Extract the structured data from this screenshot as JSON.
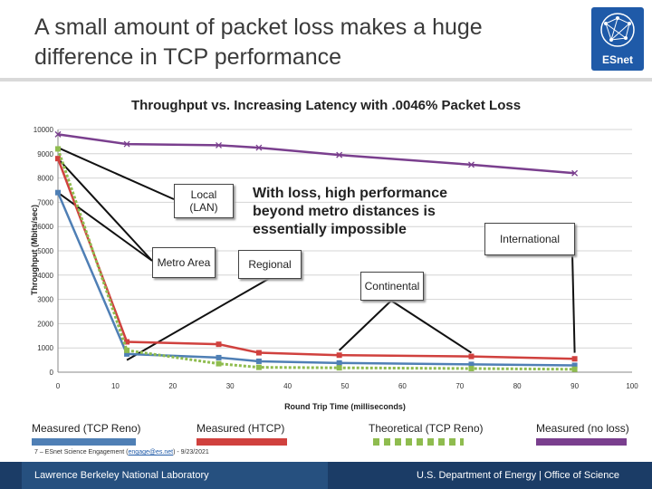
{
  "slide": {
    "title": "A small amount of packet loss makes a huge difference in TCP performance"
  },
  "logo": {
    "text": "ESnet"
  },
  "annotations": {
    "local_lan": "Local\n(LAN)",
    "metro_area": "Metro Area",
    "regional": "Regional",
    "continental": "Continental",
    "international": "International",
    "main_note": "With loss, high performance beyond metro distances is essentially impossible"
  },
  "legend": [
    {
      "label": "Measured (TCP Reno)",
      "color": "#4f7fb5",
      "style": "solid"
    },
    {
      "label": "Measured (HTCP)",
      "color": "#d0413e",
      "style": "solid"
    },
    {
      "label": "Theoretical (TCP Reno)",
      "color": "#8fbc4f",
      "style": "dashed"
    },
    {
      "label": "Measured (no loss)",
      "color": "#7a3f8e",
      "style": "solid"
    }
  ],
  "footer": {
    "small_prefix": "7 – ESnet Science Engagement (",
    "small_email": "engage@es.net",
    "small_suffix": ") - 9/23/2021",
    "left": "Lawrence Berkeley National Laboratory",
    "right": "U.S. Department of Energy  |  Office of Science"
  },
  "chart_data": {
    "type": "line",
    "title": "Throughput vs. Increasing Latency with .0046% Packet Loss",
    "xlabel": "Round Trip Time (milliseconds)",
    "ylabel": "Throughput (Mbits/sec)",
    "xlim": [
      0,
      100
    ],
    "ylim": [
      0,
      10000
    ],
    "xticks": [
      0,
      10,
      20,
      30,
      40,
      50,
      60,
      70,
      80,
      90,
      100
    ],
    "yticks": [
      0,
      1000,
      2000,
      3000,
      4000,
      5000,
      6000,
      7000,
      8000,
      9000,
      10000
    ],
    "grid": "horizontal",
    "series": [
      {
        "name": "Measured (no loss)",
        "color": "#7a3f8e",
        "style": "solid",
        "x": [
          0,
          12,
          28,
          35,
          49,
          72,
          90
        ],
        "y": [
          9800,
          9400,
          9350,
          9250,
          8950,
          8550,
          8200
        ]
      },
      {
        "name": "Measured (HTCP)",
        "color": "#d0413e",
        "style": "solid",
        "x": [
          0,
          12,
          28,
          35,
          49,
          72,
          90
        ],
        "y": [
          8800,
          1250,
          1150,
          800,
          700,
          650,
          550
        ]
      },
      {
        "name": "Measured (TCP Reno)",
        "color": "#4f7fb5",
        "style": "solid",
        "x": [
          0,
          12,
          28,
          35,
          49,
          72,
          90
        ],
        "y": [
          7400,
          750,
          600,
          450,
          380,
          320,
          280
        ]
      },
      {
        "name": "Theoretical (TCP Reno)",
        "color": "#8fbc4f",
        "style": "dashed",
        "x": [
          0,
          12,
          28,
          35,
          49,
          72,
          90
        ],
        "y": [
          9200,
          900,
          350,
          200,
          180,
          150,
          120
        ]
      }
    ]
  }
}
